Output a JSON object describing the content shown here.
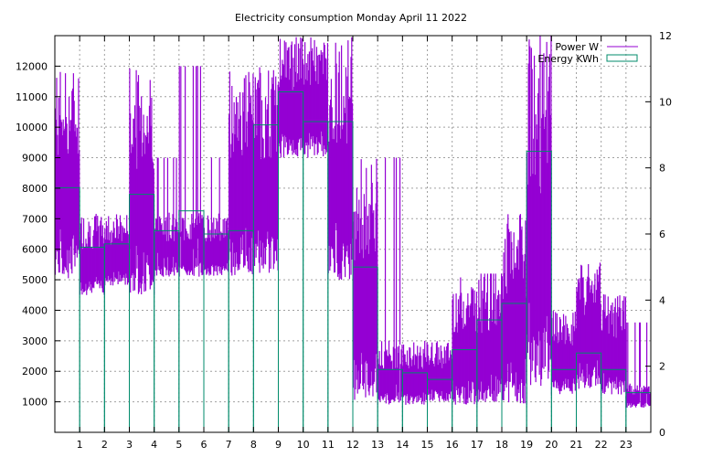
{
  "chart_data": {
    "type": "line",
    "title": "Electricity consumption Monday April 11 2022",
    "xlabel": "",
    "ylabel": "",
    "xlim": [
      0,
      24
    ],
    "ylim": [
      0,
      13000
    ],
    "y2lim": [
      0,
      12
    ],
    "grid": true,
    "legend_position": "top-right",
    "x_ticks": [
      "1",
      "2",
      "3",
      "4",
      "5",
      "6",
      "7",
      "8",
      "9",
      "10",
      "11",
      "12",
      "13",
      "14",
      "15",
      "16",
      "17",
      "18",
      "19",
      "20",
      "21",
      "22",
      "23"
    ],
    "y_ticks": [
      "1000",
      "2000",
      "3000",
      "4000",
      "5000",
      "6000",
      "7000",
      "8000",
      "9000",
      "10000",
      "11000",
      "12000"
    ],
    "y2_ticks": [
      "0",
      "2",
      "4",
      "6",
      "8",
      "10",
      "12"
    ],
    "series": [
      {
        "name": "Power W",
        "axis": "left",
        "style": "impulse-band",
        "color": "#9400d3",
        "hours": [
          0,
          1,
          2,
          3,
          4,
          5,
          6,
          7,
          8,
          9,
          10,
          11,
          12,
          13,
          14,
          15,
          16,
          17,
          18,
          19,
          20,
          21,
          22,
          23
        ],
        "min": [
          5000,
          4500,
          4800,
          4500,
          5100,
          5100,
          5100,
          5100,
          5200,
          9000,
          9000,
          5000,
          1000,
          900,
          900,
          1000,
          900,
          1000,
          900,
          1500,
          1200,
          1400,
          1200,
          800
        ],
        "max": [
          12000,
          7200,
          7200,
          12000,
          7200,
          7200,
          7200,
          12000,
          12000,
          13000,
          13000,
          13000,
          9000,
          3000,
          3000,
          3000,
          5100,
          5100,
          7200,
          13000,
          4000,
          5600,
          4600,
          1600
        ],
        "spike_max": [
          12000,
          7200,
          7200,
          12000,
          9000,
          12000,
          9000,
          12000,
          12000,
          13000,
          13000,
          13000,
          9000,
          9000,
          3000,
          3000,
          5100,
          5200,
          7200,
          13000,
          4000,
          5600,
          4600,
          3600
        ]
      },
      {
        "name": "Energy KWh",
        "axis": "right",
        "style": "steps",
        "color": "#008b6b",
        "x": [
          0,
          1,
          2,
          3,
          4,
          5,
          6,
          7,
          8,
          9,
          10,
          11,
          12,
          13,
          14,
          15,
          16,
          17,
          18,
          19,
          20,
          21,
          22,
          23
        ],
        "y": [
          7.4,
          5.6,
          5.7,
          7.2,
          6.1,
          6.7,
          6.0,
          6.1,
          9.3,
          10.3,
          9.4,
          9.4,
          5.0,
          1.9,
          1.8,
          1.6,
          2.5,
          3.4,
          3.9,
          8.5,
          1.9,
          2.4,
          1.9,
          1.2
        ]
      }
    ]
  }
}
